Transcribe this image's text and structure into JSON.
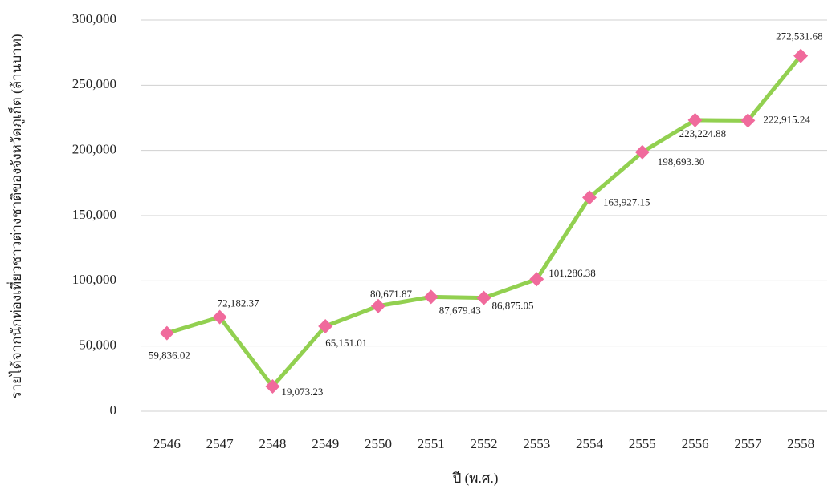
{
  "chart_data": {
    "type": "line",
    "categories": [
      "2546",
      "2547",
      "2548",
      "2549",
      "2550",
      "2551",
      "2552",
      "2553",
      "2554",
      "2555",
      "2556",
      "2557",
      "2558"
    ],
    "series": [
      {
        "name": null,
        "color": "#92d050",
        "marker_color": "#f06a9c",
        "values": [
          59836.02,
          72182.37,
          19073.23,
          65151.01,
          80671.87,
          87679.43,
          86875.05,
          101286.38,
          163927.15,
          198693.3,
          223224.88,
          222915.24,
          272531.68
        ],
        "value_labels": [
          "59,836.02",
          "72,182.37",
          "19,073.23",
          "65,151.01",
          "80,671.87",
          "87,679.43",
          "86,875.05",
          "101,286.38",
          "163,927.15",
          "198,693.30",
          "223,224.88",
          "222,915.24",
          "272,531.68"
        ]
      }
    ],
    "ylabel": "รายได้จากนักท่องเที่ยวชาวต่างชาติของจังหวัดภูเก็ต   (ล้านบาท)",
    "xlabel": "ปี (พ.ศ.)",
    "ylim": [
      0,
      300000
    ],
    "yticks": [
      0,
      {
        "value": 50000,
        "label": "50,000"
      },
      {
        "value": 100000,
        "label": "100,000"
      },
      {
        "value": 150000,
        "label": "150,000"
      },
      {
        "value": 200000,
        "label": "200,000"
      },
      {
        "value": 250000,
        "label": "250,000"
      },
      {
        "value": 300000,
        "label": "300,000"
      }
    ],
    "grid": true
  }
}
